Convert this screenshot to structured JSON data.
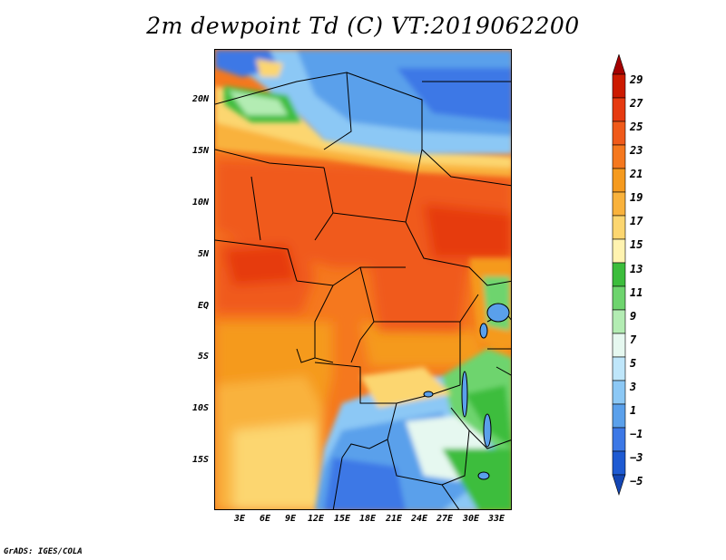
{
  "title": "2m dewpoint Td (C) VT:2019062200",
  "credit": "GrADS: IGES/COLA",
  "map": {
    "lat_labels": [
      "20N",
      "15N",
      "10N",
      "5N",
      "EQ",
      "5S",
      "10S",
      "15S"
    ],
    "lon_labels": [
      "3E",
      "6E",
      "9E",
      "12E",
      "15E",
      "18E",
      "21E",
      "24E",
      "27E",
      "30E",
      "33E"
    ]
  },
  "colorbar": {
    "levels": [
      "29",
      "27",
      "25",
      "23",
      "21",
      "19",
      "17",
      "15",
      "13",
      "11",
      "9",
      "7",
      "5",
      "3",
      "1",
      "−1",
      "−3",
      "−5"
    ],
    "colors": [
      "#a50000",
      "#cc1a00",
      "#e63a10",
      "#f05a1a",
      "#f5781e",
      "#f59a1e",
      "#f9b23c",
      "#fcd670",
      "#fff3b0",
      "#3cbd3c",
      "#6ed46e",
      "#b3ecb3",
      "#e6f8f0",
      "#bfe6fa",
      "#8cc8f5",
      "#5aa0eb",
      "#3c78e6",
      "#1e5ad2",
      "#1446b4"
    ]
  }
}
